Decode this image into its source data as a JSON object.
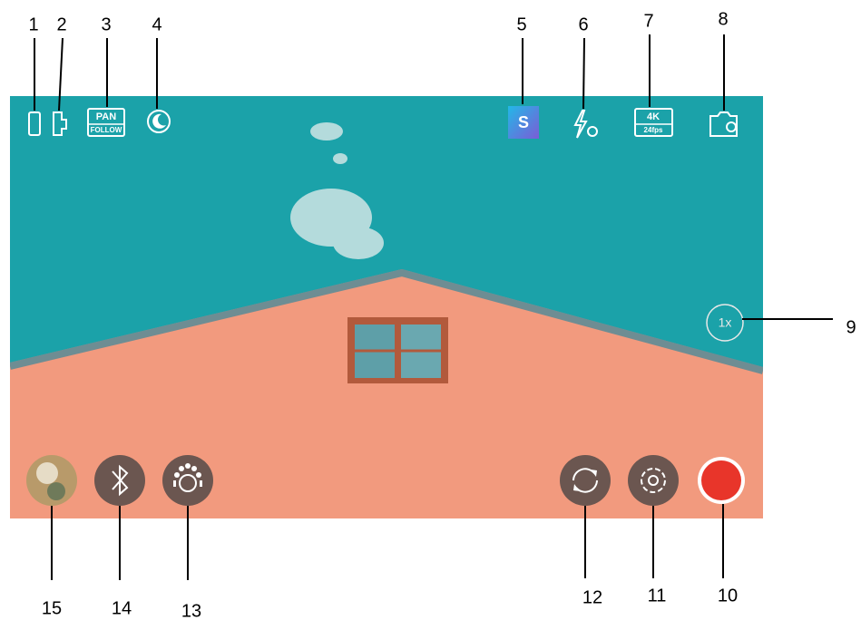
{
  "callouts": [
    "1",
    "2",
    "3",
    "4",
    "5",
    "6",
    "7",
    "8",
    "9",
    "10",
    "11",
    "12",
    "13",
    "14",
    "15"
  ],
  "icons": {
    "pan_mode": "PAN",
    "follow_mode": "FOLLOW",
    "scene_mode": "S",
    "resolution": "4K",
    "frame_rate": "24fps",
    "zoom": "1x"
  }
}
